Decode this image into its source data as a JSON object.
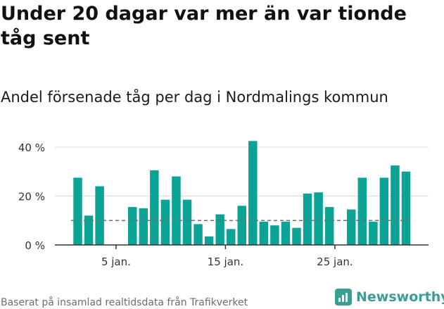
{
  "header": {
    "title": "Under 20 dagar var mer än var tionde tåg sent",
    "subtitle": "Andel försenade tåg per dag i Nordmalings kommun"
  },
  "footer": {
    "source": "Baserat på insamlad realtidsdata från Trafikverket",
    "brand": "Newsworthy"
  },
  "colors": {
    "bar": "#0aa396",
    "grid": "#dcdcdc",
    "axis": "#333333",
    "reference_line": "#707070",
    "brand": "#3a9e94"
  },
  "chart_data": {
    "type": "bar",
    "x": [
      1,
      2,
      3,
      4,
      5,
      6,
      7,
      8,
      9,
      10,
      11,
      12,
      13,
      14,
      15,
      16,
      17,
      18,
      19,
      20,
      21,
      22,
      23,
      24,
      25,
      26,
      27,
      28,
      29,
      30,
      31
    ],
    "values": [
      27.5,
      12,
      24,
      0,
      0,
      15.5,
      15,
      30.5,
      18.5,
      28,
      18.5,
      8.5,
      3.5,
      12.5,
      6.5,
      16,
      42.5,
      9.5,
      8,
      9.5,
      7,
      21,
      21.5,
      15.5,
      0,
      14.5,
      27.5,
      9.5,
      27.5,
      32.5,
      30
    ],
    "xlim": [
      1,
      31
    ],
    "ylim": [
      0,
      40
    ],
    "y_ticks": [
      0,
      20,
      40
    ],
    "y_tick_labels": [
      "0 %",
      "20 %",
      "40 %"
    ],
    "x_ticks": [
      5,
      15,
      25
    ],
    "x_tick_labels": [
      "5 jan.",
      "15 jan.",
      "25 jan."
    ],
    "reference_line": 10,
    "grid": "horizontal"
  }
}
